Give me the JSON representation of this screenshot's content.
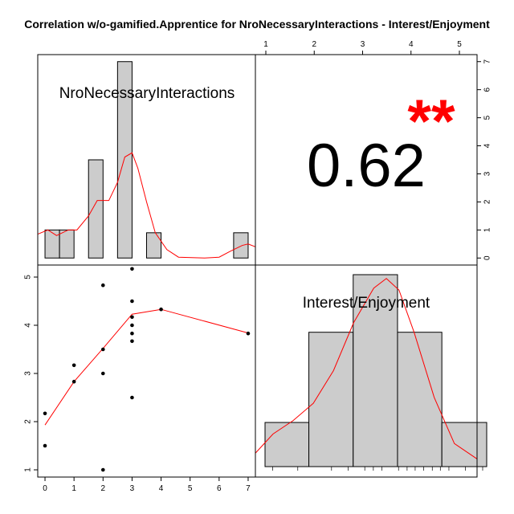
{
  "title": "Correlation w/o-gamified.Apprentice for NroNecessaryInteractions - Interest/Enjoyment",
  "chart_data": {
    "type": "scatter",
    "variables": [
      "NroNecessaryInteractions",
      "Interest/Enjoyment"
    ],
    "correlation": {
      "value": "0.62",
      "significance": "**"
    },
    "x_axis": {
      "ticks": [
        "0",
        "1",
        "2",
        "3",
        "4",
        "5",
        "6",
        "7"
      ],
      "xlim": [
        -0.25,
        7.25
      ]
    },
    "y_axis": {
      "ticks": [
        "1",
        "2",
        "3",
        "4",
        "5"
      ],
      "ylim": [
        0.85,
        5.25
      ]
    },
    "top_axis": {
      "ticks": [
        "1",
        "2",
        "3",
        "4",
        "5"
      ]
    },
    "right_axis": {
      "ticks": [
        "0",
        "1",
        "2",
        "3",
        "4",
        "5",
        "6",
        "7"
      ],
      "ylim": [
        -0.25,
        7.25
      ]
    },
    "scatter_points": [
      {
        "x": 0,
        "y": 2.17
      },
      {
        "x": 0,
        "y": 1.5
      },
      {
        "x": 1,
        "y": 3.17
      },
      {
        "x": 1,
        "y": 2.83
      },
      {
        "x": 2,
        "y": 4.83
      },
      {
        "x": 2,
        "y": 3.5
      },
      {
        "x": 2,
        "y": 3.0
      },
      {
        "x": 2,
        "y": 1.0
      },
      {
        "x": 3,
        "y": 5.17
      },
      {
        "x": 3,
        "y": 4.5
      },
      {
        "x": 3,
        "y": 4.17
      },
      {
        "x": 3,
        "y": 4.0
      },
      {
        "x": 3,
        "y": 3.83
      },
      {
        "x": 3,
        "y": 3.67
      },
      {
        "x": 3,
        "y": 2.5
      },
      {
        "x": 4,
        "y": 4.33
      },
      {
        "x": 7,
        "y": 3.83
      }
    ],
    "smooth_line": [
      {
        "x": 0,
        "y": 1.93
      },
      {
        "x": 1,
        "y": 2.83
      },
      {
        "x": 2,
        "y": 3.52
      },
      {
        "x": 3,
        "y": 4.23
      },
      {
        "x": 4,
        "y": 4.33
      },
      {
        "x": 7,
        "y": 3.84
      }
    ],
    "histogram_x": {
      "label": "NroNecessaryInteractions",
      "bars": [
        {
          "from": 0,
          "to": 0.5,
          "height": 1.0
        },
        {
          "from": 0.5,
          "to": 1.0,
          "height": 1.0
        },
        {
          "from": 1.5,
          "to": 2.0,
          "height": 3.5
        },
        {
          "from": 2.5,
          "to": 3.0,
          "height": 7.0
        },
        {
          "from": 3.5,
          "to": 4.0,
          "height": 0.9
        },
        {
          "from": 6.5,
          "to": 7.0,
          "height": 0.9
        }
      ],
      "density": [
        {
          "x": -0.25,
          "y": 0.85
        },
        {
          "x": 0.1,
          "y": 1.0
        },
        {
          "x": 0.4,
          "y": 0.8
        },
        {
          "x": 0.8,
          "y": 1.0
        },
        {
          "x": 1.1,
          "y": 1.0
        },
        {
          "x": 1.5,
          "y": 1.5
        },
        {
          "x": 1.8,
          "y": 2.05
        },
        {
          "x": 2.2,
          "y": 2.05
        },
        {
          "x": 2.5,
          "y": 2.7
        },
        {
          "x": 2.75,
          "y": 3.6
        },
        {
          "x": 3.0,
          "y": 3.75
        },
        {
          "x": 3.2,
          "y": 3.2
        },
        {
          "x": 3.5,
          "y": 2.0
        },
        {
          "x": 3.8,
          "y": 0.9
        },
        {
          "x": 4.2,
          "y": 0.3
        },
        {
          "x": 4.6,
          "y": 0.03
        },
        {
          "x": 5.5,
          "y": 0.0
        },
        {
          "x": 6.0,
          "y": 0.03
        },
        {
          "x": 6.4,
          "y": 0.25
        },
        {
          "x": 6.8,
          "y": 0.45
        },
        {
          "x": 7.0,
          "y": 0.5
        },
        {
          "x": 7.25,
          "y": 0.4
        }
      ]
    },
    "histogram_y": {
      "label": "Interest/Enjoyment",
      "bars": [
        {
          "from": 0.85,
          "to": 1.72,
          "height": 0.23
        },
        {
          "from": 1.72,
          "to": 2.6,
          "height": 0.7
        },
        {
          "from": 2.6,
          "to": 3.48,
          "height": 1.0
        },
        {
          "from": 3.48,
          "to": 4.36,
          "height": 0.7
        },
        {
          "from": 4.36,
          "to": 5.25,
          "height": 0.23
        }
      ],
      "density": [
        {
          "x": 0.85,
          "y": 0.07
        },
        {
          "x": 1.2,
          "y": 0.17
        },
        {
          "x": 1.6,
          "y": 0.24
        },
        {
          "x": 2.0,
          "y": 0.33
        },
        {
          "x": 2.4,
          "y": 0.5
        },
        {
          "x": 2.8,
          "y": 0.75
        },
        {
          "x": 3.2,
          "y": 0.93
        },
        {
          "x": 3.45,
          "y": 0.98
        },
        {
          "x": 3.7,
          "y": 0.92
        },
        {
          "x": 4.0,
          "y": 0.7
        },
        {
          "x": 4.4,
          "y": 0.36
        },
        {
          "x": 4.8,
          "y": 0.12
        },
        {
          "x": 5.25,
          "y": 0.04
        }
      ],
      "rug": [
        1.0,
        1.5,
        2.17,
        2.5,
        2.83,
        3.0,
        3.17,
        3.5,
        3.67,
        3.83,
        4.0,
        4.17,
        4.33,
        4.5,
        4.83,
        5.17
      ]
    }
  }
}
